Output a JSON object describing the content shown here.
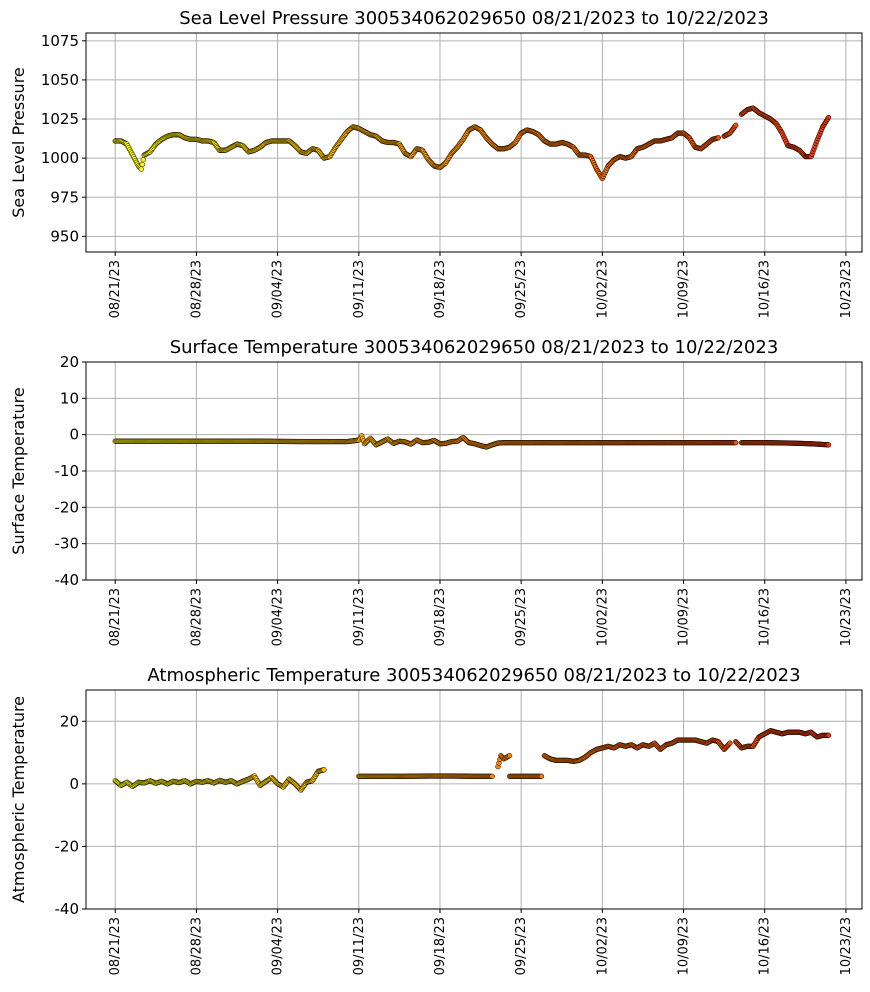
{
  "chart_data": [
    {
      "type": "scatter",
      "title": "Sea Level Pressure 300534062029650  08/21/2023 to 10/22/2023",
      "ylabel": "Sea Level Pressure",
      "xlabel": "",
      "xlim": [
        "2023-08-21",
        "2023-10-23"
      ],
      "ylim": [
        940,
        1080
      ],
      "yticks": [
        950,
        975,
        1000,
        1025,
        1050,
        1075
      ],
      "xticks": [
        "08/21/23",
        "08/28/23",
        "09/04/23",
        "09/11/23",
        "09/18/23",
        "09/25/23",
        "10/02/23",
        "10/09/23",
        "10/16/23",
        "10/23/23"
      ],
      "grid": true,
      "colormap": [
        "#ffff00",
        "#ff8c00",
        "#e83010"
      ],
      "segments": [
        {
          "x": [
            "2023-08-21T00",
            "2023-08-21T12",
            "2023-08-22T00",
            "2023-08-22T12",
            "2023-08-23T00",
            "2023-08-23T06",
            "2023-08-23T12",
            "2023-08-24T00",
            "2023-08-24T12",
            "2023-08-25T00",
            "2023-08-25T12",
            "2023-08-26T00",
            "2023-08-26T12",
            "2023-08-27T00",
            "2023-08-27T12",
            "2023-08-28T00",
            "2023-08-28T12",
            "2023-08-29T00",
            "2023-08-29T12",
            "2023-08-30T00",
            "2023-08-30T12",
            "2023-08-31T00",
            "2023-08-31T12",
            "2023-09-01T00",
            "2023-09-01T12",
            "2023-09-02T00",
            "2023-09-02T12",
            "2023-09-03T00",
            "2023-09-03T12",
            "2023-09-04T00",
            "2023-09-04T12",
            "2023-09-05T00",
            "2023-09-05T12",
            "2023-09-06T00",
            "2023-09-06T12",
            "2023-09-07T00",
            "2023-09-07T12",
            "2023-09-08T00",
            "2023-09-08T12",
            "2023-09-09T00",
            "2023-09-09T12",
            "2023-09-10T00",
            "2023-09-10T12",
            "2023-09-11T00",
            "2023-09-11T12",
            "2023-09-12T00",
            "2023-09-12T12",
            "2023-09-13T00",
            "2023-09-13T12",
            "2023-09-14T00",
            "2023-09-14T12",
            "2023-09-15T00",
            "2023-09-15T12",
            "2023-09-16T00",
            "2023-09-16T12",
            "2023-09-17T00",
            "2023-09-17T12",
            "2023-09-18T00",
            "2023-09-18T12",
            "2023-09-19T00",
            "2023-09-19T12",
            "2023-09-20T00",
            "2023-09-20T12",
            "2023-09-21T00",
            "2023-09-21T12",
            "2023-09-22T00",
            "2023-09-22T12",
            "2023-09-23T00",
            "2023-09-23T12",
            "2023-09-24T00",
            "2023-09-24T12",
            "2023-09-25T00",
            "2023-09-25T12",
            "2023-09-26T00",
            "2023-09-26T12",
            "2023-09-27T00",
            "2023-09-27T12",
            "2023-09-28T00",
            "2023-09-28T12",
            "2023-09-29T00",
            "2023-09-29T12",
            "2023-09-30T00",
            "2023-09-30T12",
            "2023-10-01T00",
            "2023-10-01T12",
            "2023-10-02T00",
            "2023-10-02T12",
            "2023-10-03T00",
            "2023-10-03T12",
            "2023-10-04T00",
            "2023-10-04T12",
            "2023-10-05T00",
            "2023-10-05T12",
            "2023-10-06T00",
            "2023-10-06T12",
            "2023-10-07T00",
            "2023-10-07T12",
            "2023-10-08T00",
            "2023-10-08T12",
            "2023-10-09T00",
            "2023-10-09T12",
            "2023-10-10T00",
            "2023-10-10T12",
            "2023-10-11T00",
            "2023-10-11T12",
            "2023-10-12T00"
          ],
          "y": [
            1011,
            1011,
            1009,
            1002,
            995,
            993,
            1002,
            1004,
            1009,
            1012,
            1014,
            1015,
            1015,
            1013,
            1012,
            1012,
            1011,
            1011,
            1010,
            1005,
            1005,
            1007,
            1009,
            1008,
            1004,
            1005,
            1007,
            1010,
            1011,
            1011,
            1011,
            1011,
            1008,
            1004,
            1003,
            1006,
            1005,
            1000,
            1001,
            1007,
            1012,
            1017,
            1020,
            1019,
            1017,
            1015,
            1014,
            1011,
            1010,
            1010,
            1009,
            1003,
            1001,
            1006,
            1005,
            999,
            995,
            994,
            997,
            1003,
            1007,
            1012,
            1018,
            1020,
            1018,
            1013,
            1009,
            1006,
            1006,
            1007,
            1010,
            1016,
            1018,
            1017,
            1015,
            1011,
            1009,
            1009,
            1010,
            1009,
            1007,
            1002,
            1002,
            1001,
            993,
            987,
            995,
            999,
            1001,
            1000,
            1001,
            1006,
            1007,
            1009,
            1011,
            1011,
            1012,
            1013,
            1016,
            1016,
            1013,
            1007,
            1006,
            1009,
            1012,
            1013
          ]
        },
        {
          "x": [
            "2023-10-12T12",
            "2023-10-13T00",
            "2023-10-13T12"
          ],
          "y": [
            1014,
            1016,
            1021
          ]
        },
        {
          "x": [
            "2023-10-14T00",
            "2023-10-14T12",
            "2023-10-15T00",
            "2023-10-15T12",
            "2023-10-16T00",
            "2023-10-16T12",
            "2023-10-17T00",
            "2023-10-17T12",
            "2023-10-18T00",
            "2023-10-18T12",
            "2023-10-19T00",
            "2023-10-19T12",
            "2023-10-20T00",
            "2023-10-20T12",
            "2023-10-21T00",
            "2023-10-21T12"
          ],
          "y": [
            1028,
            1031,
            1032,
            1029,
            1027,
            1025,
            1022,
            1016,
            1008,
            1007,
            1005,
            1001,
            1001,
            1011,
            1020,
            1026
          ]
        }
      ]
    },
    {
      "type": "scatter",
      "title": "Surface Temperature 300534062029650  08/21/2023 to 10/22/2023",
      "ylabel": "Surface Temperature",
      "xlabel": "",
      "xlim": [
        "2023-08-21",
        "2023-10-23"
      ],
      "ylim": [
        -40,
        20
      ],
      "yticks": [
        -40,
        -30,
        -20,
        -10,
        0,
        10,
        20
      ],
      "xticks": [
        "08/21/23",
        "08/28/23",
        "09/04/23",
        "09/11/23",
        "09/18/23",
        "09/25/23",
        "10/02/23",
        "10/09/23",
        "10/16/23",
        "10/23/23"
      ],
      "grid": true,
      "colormap": [
        "#ffff00",
        "#ff8c00",
        "#e83010"
      ],
      "segments": [
        {
          "x": [
            "2023-08-21T00",
            "2023-08-25T00",
            "2023-08-29T00",
            "2023-09-02T00",
            "2023-09-06T00",
            "2023-09-09T00",
            "2023-09-10T00",
            "2023-09-11T00",
            "2023-09-11T06",
            "2023-09-11T12",
            "2023-09-12T00",
            "2023-09-12T12",
            "2023-09-13T00",
            "2023-09-13T12",
            "2023-09-14T00",
            "2023-09-14T12",
            "2023-09-15T00",
            "2023-09-15T12",
            "2023-09-16T00",
            "2023-09-16T12",
            "2023-09-17T00",
            "2023-09-17T12",
            "2023-09-18T00",
            "2023-09-18T12",
            "2023-09-19T00",
            "2023-09-19T12",
            "2023-09-20T00",
            "2023-09-20T12",
            "2023-09-21T00",
            "2023-09-21T12",
            "2023-09-22T00",
            "2023-09-22T12",
            "2023-09-23T00",
            "2023-09-23T12",
            "2023-09-24T00",
            "2023-09-25T00",
            "2023-09-28T00",
            "2023-10-02T00",
            "2023-10-06T00",
            "2023-10-10T00",
            "2023-10-12T00",
            "2023-10-13T12"
          ],
          "y": [
            -1.8,
            -1.8,
            -1.8,
            -1.8,
            -1.9,
            -1.9,
            -1.9,
            -1.5,
            -0.3,
            -2.5,
            -1.0,
            -2.8,
            -2.0,
            -1.2,
            -2.4,
            -1.8,
            -2.0,
            -2.6,
            -1.5,
            -2.2,
            -2.1,
            -1.6,
            -2.5,
            -2.4,
            -1.9,
            -1.8,
            -0.8,
            -2.2,
            -2.5,
            -3.0,
            -3.4,
            -2.8,
            -2.3,
            -2.2,
            -2.2,
            -2.2,
            -2.2,
            -2.2,
            -2.2,
            -2.2,
            -2.2,
            -2.2
          ]
        },
        {
          "x": [
            "2023-10-14T00",
            "2023-10-16T00",
            "2023-10-18T00",
            "2023-10-20T00",
            "2023-10-21T12"
          ],
          "y": [
            -2.2,
            -2.2,
            -2.3,
            -2.5,
            -2.8
          ]
        }
      ]
    },
    {
      "type": "scatter",
      "title": "Atmospheric Temperature 300534062029650  08/21/2023 to 10/22/2023",
      "ylabel": "Atmospheric Temperature",
      "xlabel": "",
      "xlim": [
        "2023-08-21",
        "2023-10-23"
      ],
      "ylim": [
        -40,
        30
      ],
      "yticks": [
        -40,
        -20,
        0,
        20
      ],
      "xticks": [
        "08/21/23",
        "08/28/23",
        "09/04/23",
        "09/11/23",
        "09/18/23",
        "09/25/23",
        "10/02/23",
        "10/09/23",
        "10/16/23",
        "10/23/23"
      ],
      "grid": true,
      "colormap": [
        "#ffff00",
        "#ff8c00",
        "#e83010"
      ],
      "segments": [
        {
          "x": [
            "2023-08-21T00",
            "2023-08-21T12",
            "2023-08-22T00",
            "2023-08-22T12",
            "2023-08-23T00",
            "2023-08-23T12",
            "2023-08-24T00",
            "2023-08-24T12",
            "2023-08-25T00",
            "2023-08-25T12",
            "2023-08-26T00",
            "2023-08-26T12",
            "2023-08-27T00",
            "2023-08-27T12",
            "2023-08-28T00",
            "2023-08-28T12",
            "2023-08-29T00",
            "2023-08-29T12",
            "2023-08-30T00",
            "2023-08-30T12",
            "2023-08-31T00",
            "2023-08-31T12",
            "2023-09-01T00",
            "2023-09-01T12",
            "2023-09-02T00",
            "2023-09-02T12",
            "2023-09-03T00",
            "2023-09-03T12",
            "2023-09-04T00",
            "2023-09-04T12",
            "2023-09-05T00",
            "2023-09-05T12",
            "2023-09-06T00",
            "2023-09-06T12",
            "2023-09-07T00",
            "2023-09-07T12",
            "2023-09-08T00"
          ],
          "y": [
            1.0,
            -0.5,
            0.5,
            -0.8,
            0.5,
            0.3,
            1.0,
            0.2,
            0.8,
            0.0,
            0.8,
            0.4,
            1.0,
            0.0,
            0.8,
            0.5,
            1.0,
            0.3,
            1.1,
            0.5,
            1.0,
            0.0,
            0.8,
            1.5,
            2.5,
            -0.5,
            0.8,
            2.0,
            0.0,
            -1.0,
            1.5,
            0.0,
            -2.0,
            0.5,
            1.0,
            4.0,
            4.5
          ]
        },
        {
          "x": [
            "2023-09-11T00",
            "2023-09-13T00",
            "2023-09-15T00",
            "2023-09-17T00",
            "2023-09-19T00",
            "2023-09-21T00",
            "2023-09-22T12"
          ],
          "y": [
            2.4,
            2.4,
            2.4,
            2.5,
            2.5,
            2.4,
            2.4
          ]
        },
        {
          "x": [
            "2023-09-23T00",
            "2023-09-23T06",
            "2023-09-23T12",
            "2023-09-24T00"
          ],
          "y": [
            5.5,
            9.0,
            8.0,
            9.0
          ]
        },
        {
          "x": [
            "2023-09-24T00",
            "2023-09-25T00",
            "2023-09-26T00",
            "2023-09-26T18"
          ],
          "y": [
            2.4,
            2.4,
            2.4,
            2.4
          ]
        },
        {
          "x": [
            "2023-09-27T00",
            "2023-09-27T12",
            "2023-09-28T00",
            "2023-09-28T12",
            "2023-09-29T00",
            "2023-09-29T12",
            "2023-09-30T00",
            "2023-09-30T12",
            "2023-10-01T00",
            "2023-10-01T12",
            "2023-10-02T00",
            "2023-10-02T12",
            "2023-10-03T00",
            "2023-10-03T12",
            "2023-10-04T00",
            "2023-10-04T12",
            "2023-10-05T00",
            "2023-10-05T12",
            "2023-10-06T00",
            "2023-10-06T12",
            "2023-10-07T00",
            "2023-10-07T12",
            "2023-10-08T00",
            "2023-10-08T12",
            "2023-10-09T00",
            "2023-10-09T12",
            "2023-10-10T00",
            "2023-10-10T12",
            "2023-10-11T00",
            "2023-10-11T12",
            "2023-10-12T00",
            "2023-10-12T12",
            "2023-10-13T00"
          ],
          "y": [
            9.0,
            8.0,
            7.5,
            7.5,
            7.5,
            7.2,
            7.5,
            8.5,
            10.0,
            11.0,
            11.5,
            12.0,
            11.5,
            12.5,
            12.0,
            12.5,
            11.5,
            12.5,
            12.0,
            13.0,
            11.0,
            12.5,
            13.0,
            14.0,
            14.0,
            14.0,
            14.0,
            13.5,
            13.0,
            14.0,
            13.5,
            11.0,
            13.0
          ]
        },
        {
          "x": [
            "2023-10-13T12",
            "2023-10-14T00",
            "2023-10-14T12",
            "2023-10-15T00",
            "2023-10-15T12",
            "2023-10-16T00",
            "2023-10-16T12",
            "2023-10-17T00",
            "2023-10-17T12",
            "2023-10-18T00",
            "2023-10-18T12",
            "2023-10-19T00",
            "2023-10-19T12",
            "2023-10-20T00",
            "2023-10-20T12",
            "2023-10-21T00",
            "2023-10-21T12"
          ],
          "y": [
            13.5,
            11.5,
            12.0,
            12.0,
            15.0,
            16.0,
            17.0,
            16.5,
            16.0,
            16.5,
            16.5,
            16.5,
            16.0,
            16.5,
            15.0,
            15.5,
            15.5
          ]
        }
      ]
    }
  ]
}
